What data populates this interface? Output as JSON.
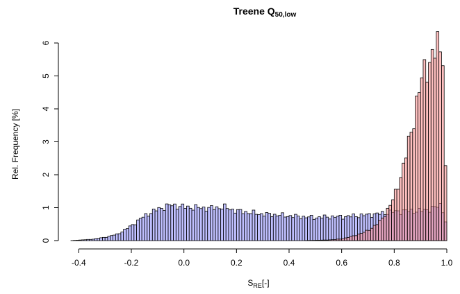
{
  "chart_data": {
    "type": "histogram",
    "title": {
      "main": "Treene Q",
      "subscript": "50,low"
    },
    "xlabel": {
      "main": "S",
      "subscript": "RE",
      "suffix": "[-]"
    },
    "ylabel": "Rel. Frequency [%]",
    "xlim": [
      -0.43,
      1.0
    ],
    "ylim": [
      0,
      6
    ],
    "x_ticks": [
      "-0.4",
      "-0.2",
      "0.0",
      "0.2",
      "0.4",
      "0.6",
      "0.8",
      "1.0"
    ],
    "y_ticks": [
      "0",
      "1",
      "2",
      "3",
      "4",
      "5",
      "6"
    ],
    "grid": false,
    "legend": "none",
    "bin_width": 0.01,
    "series": [
      {
        "color": "#8c8cff",
        "shape": [
          [
            -0.43,
            0.0
          ],
          [
            -0.35,
            0.04
          ],
          [
            -0.3,
            0.1
          ],
          [
            -0.25,
            0.2
          ],
          [
            -0.2,
            0.45
          ],
          [
            -0.15,
            0.75
          ],
          [
            -0.1,
            0.95
          ],
          [
            -0.05,
            1.08
          ],
          [
            0.0,
            1.02
          ],
          [
            0.05,
            1.0
          ],
          [
            0.1,
            0.98
          ],
          [
            0.15,
            1.02
          ],
          [
            0.2,
            0.9
          ],
          [
            0.25,
            0.85
          ],
          [
            0.3,
            0.8
          ],
          [
            0.35,
            0.78
          ],
          [
            0.4,
            0.75
          ],
          [
            0.45,
            0.72
          ],
          [
            0.5,
            0.7
          ],
          [
            0.55,
            0.72
          ],
          [
            0.6,
            0.72
          ],
          [
            0.65,
            0.75
          ],
          [
            0.7,
            0.78
          ],
          [
            0.75,
            0.82
          ],
          [
            0.8,
            0.88
          ],
          [
            0.85,
            0.9
          ],
          [
            0.9,
            0.9
          ],
          [
            0.95,
            0.98
          ],
          [
            0.98,
            1.1
          ],
          [
            1.0,
            0.4
          ]
        ]
      },
      {
        "color": "#ff8c8c",
        "shape": [
          [
            -0.43,
            0.0
          ],
          [
            0.45,
            0.0
          ],
          [
            0.5,
            0.01
          ],
          [
            0.55,
            0.02
          ],
          [
            0.6,
            0.05
          ],
          [
            0.65,
            0.15
          ],
          [
            0.7,
            0.3
          ],
          [
            0.75,
            0.6
          ],
          [
            0.8,
            1.3
          ],
          [
            0.83,
            2.1
          ],
          [
            0.86,
            3.1
          ],
          [
            0.89,
            4.4
          ],
          [
            0.92,
            5.3
          ],
          [
            0.95,
            5.6
          ],
          [
            0.97,
            6.0
          ],
          [
            0.985,
            5.8
          ],
          [
            1.0,
            0.3
          ]
        ]
      }
    ]
  }
}
